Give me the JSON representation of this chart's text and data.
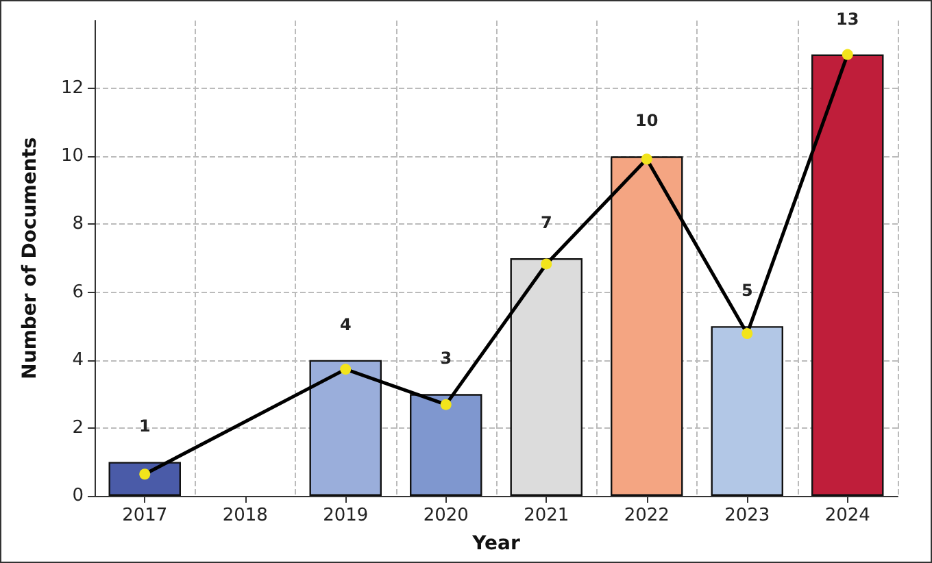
{
  "chart_data": {
    "type": "bar",
    "xlabel": "Year",
    "ylabel": "Number of Documents",
    "categories": [
      "2017",
      "2018",
      "2019",
      "2020",
      "2021",
      "2022",
      "2023",
      "2024"
    ],
    "series": [
      {
        "values": [
          1,
          null,
          4,
          3,
          7,
          10,
          5,
          13
        ],
        "colors": [
          "#4a5ba8",
          null,
          "#9aaedb",
          "#7f97cf",
          "#dcdcdc",
          "#f4a582",
          "#b2c7e6",
          "#bf1e3a"
        ],
        "value_labels": [
          "1",
          null,
          "4",
          "3",
          "7",
          "10",
          "5",
          "13"
        ]
      },
      {
        "type": "line",
        "values": [
          0.64,
          null,
          3.73,
          2.69,
          6.83,
          9.92,
          4.78,
          13.0
        ],
        "color": "#000000",
        "marker": "circle",
        "line_style": "solid"
      }
    ],
    "ylim": [
      0,
      14
    ],
    "yticks": [
      0,
      2,
      4,
      6,
      8,
      10,
      12
    ],
    "grid": true
  }
}
